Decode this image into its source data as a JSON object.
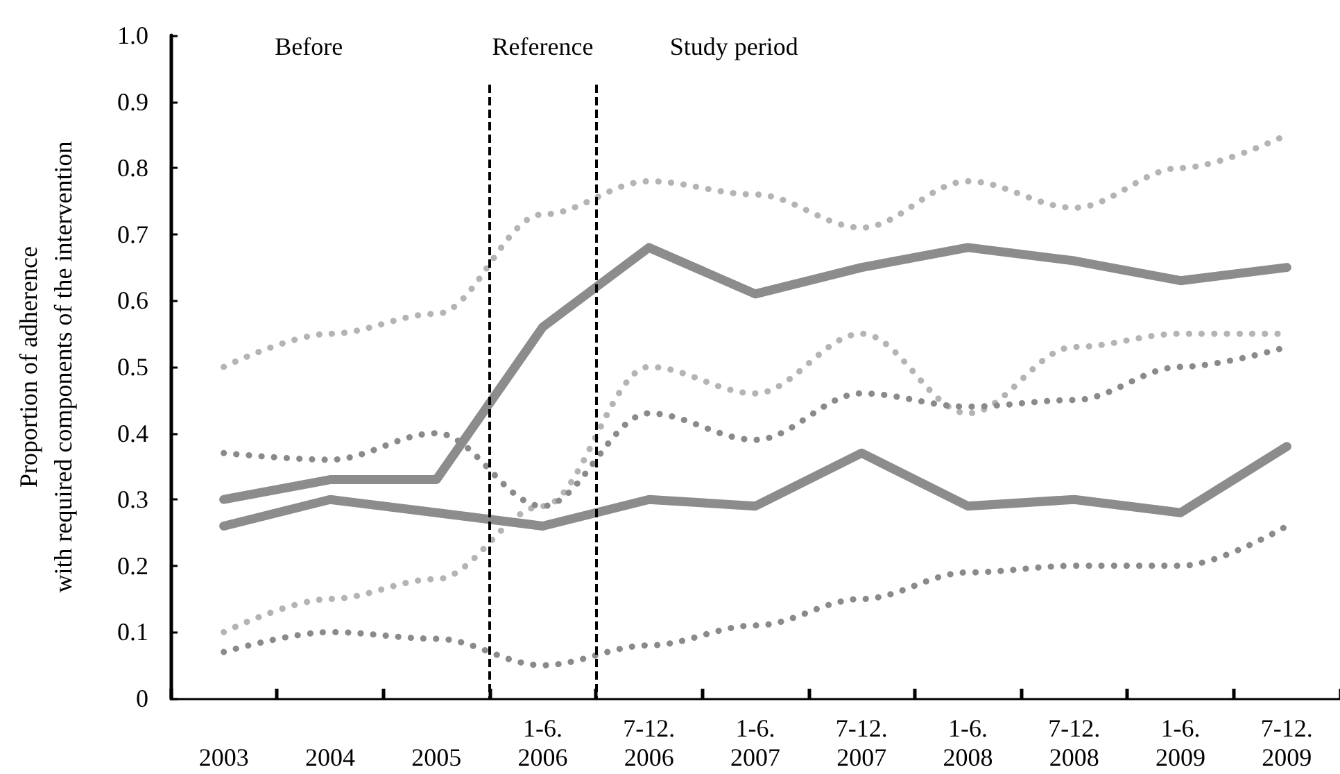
{
  "chart_data": {
    "type": "line",
    "ylabel": "Proportion of adherence\nwith required components of the intervention",
    "categories": [
      "2003",
      "2004",
      "2005",
      "1-6.\n2006",
      "7-12.\n2006",
      "1-6.\n2007",
      "7-12.\n2007",
      "1-6.\n2008",
      "7-12.\n2008",
      "1-6.\n2009",
      "7-12.\n2009"
    ],
    "series": [
      {
        "color": "#8c8c8c",
        "values": [
          0.3,
          0.33,
          0.33,
          0.56,
          0.68,
          0.61,
          0.65,
          0.68,
          0.66,
          0.63,
          0.65
        ]
      },
      {
        "color": "#8c8c8c",
        "values": [
          0.26,
          0.3,
          0.28,
          0.26,
          0.3,
          0.29,
          0.37,
          0.29,
          0.3,
          0.28,
          0.38
        ]
      },
      {
        "color": "#b4b4b4",
        "line_style": "dotted",
        "values": [
          0.5,
          0.55,
          0.58,
          0.73,
          0.78,
          0.76,
          0.71,
          0.78,
          0.74,
          0.8,
          0.85
        ]
      },
      {
        "color": "#b4b4b4",
        "line_style": "dotted",
        "values": [
          0.1,
          0.15,
          0.18,
          0.29,
          0.5,
          0.46,
          0.55,
          0.43,
          0.53,
          0.55,
          0.55
        ]
      },
      {
        "color": "#8a8a8a",
        "line_style": "dotted",
        "values": [
          0.37,
          0.36,
          0.4,
          0.29,
          0.43,
          0.39,
          0.46,
          0.44,
          0.45,
          0.5,
          0.53
        ]
      },
      {
        "color": "#8a8a8a",
        "line_style": "dotted",
        "values": [
          0.07,
          0.1,
          0.09,
          0.05,
          0.08,
          0.11,
          0.15,
          0.19,
          0.2,
          0.2,
          0.26
        ]
      }
    ],
    "ylim": [
      0,
      1
    ],
    "yticks": [
      0,
      0.1,
      0.2,
      0.3,
      0.4,
      0.5,
      0.6,
      0.7,
      0.8,
      0.9,
      {
        "value": 1,
        "label": "1.0"
      }
    ],
    "line_style": "solid",
    "marker": "none",
    "annotations": [
      "Before",
      "Reference",
      "Study period"
    ]
  }
}
